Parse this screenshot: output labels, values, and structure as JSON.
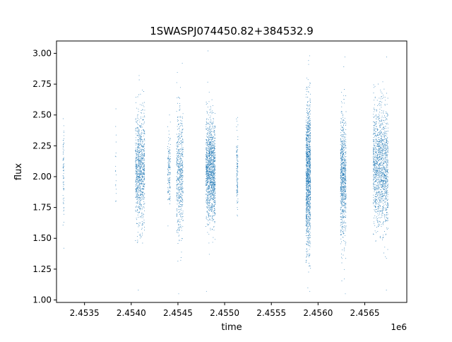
{
  "chart_data": {
    "type": "scatter",
    "title": "1SWASPJ074450.82+384532.9",
    "xlabel": "time",
    "ylabel": "flux",
    "x_offset_label": "1e6",
    "xlim": [
      2453200,
      2456950
    ],
    "ylim": [
      0.98,
      3.1
    ],
    "x_ticks": [
      2453500,
      2454000,
      2454500,
      2455000,
      2455500,
      2456000,
      2456500
    ],
    "x_tick_labels": [
      "2.4535",
      "2.4540",
      "2.4545",
      "2.4550",
      "2.4555",
      "2.4560",
      "2.4565"
    ],
    "y_ticks": [
      1.0,
      1.25,
      1.5,
      1.75,
      2.0,
      2.25,
      2.5,
      2.75,
      3.0
    ],
    "y_tick_labels": [
      "1.00",
      "1.25",
      "1.50",
      "1.75",
      "2.00",
      "2.25",
      "2.50",
      "2.75",
      "3.00"
    ],
    "grid": false,
    "point_color": "#1f77b4",
    "series": [
      {
        "clusters": [
          {
            "x_center": 2453275,
            "x_spread": 6,
            "n": 70,
            "y_mean": 2.02,
            "y_sd": 0.17,
            "y_min": 1.42,
            "y_max": 2.47
          },
          {
            "x_center": 2453835,
            "x_spread": 5,
            "n": 18,
            "y_mean": 2.05,
            "y_sd": 0.2,
            "y_min": 1.8,
            "y_max": 2.55
          },
          {
            "x_center": 2454095,
            "x_spread": 50,
            "n": 900,
            "y_mean": 2.05,
            "y_sd": 0.22,
            "y_min": 1.08,
            "y_max": 2.82
          },
          {
            "x_center": 2454405,
            "x_spread": 15,
            "n": 140,
            "y_mean": 2.05,
            "y_sd": 0.15,
            "y_min": 1.6,
            "y_max": 2.5
          },
          {
            "x_center": 2454520,
            "x_spread": 35,
            "n": 550,
            "y_mean": 2.02,
            "y_sd": 0.25,
            "y_min": 1.05,
            "y_max": 2.92
          },
          {
            "x_center": 2454850,
            "x_spread": 50,
            "n": 1300,
            "y_mean": 2.05,
            "y_sd": 0.2,
            "y_min": 1.07,
            "y_max": 3.02
          },
          {
            "x_center": 2455135,
            "x_spread": 8,
            "n": 120,
            "y_mean": 2.02,
            "y_sd": 0.18,
            "y_min": 1.68,
            "y_max": 2.48
          },
          {
            "x_center": 2455895,
            "x_spread": 25,
            "n": 1200,
            "y_mean": 2.0,
            "y_sd": 0.3,
            "y_min": 1.07,
            "y_max": 2.98
          },
          {
            "x_center": 2456270,
            "x_spread": 30,
            "n": 800,
            "y_mean": 2.0,
            "y_sd": 0.25,
            "y_min": 1.05,
            "y_max": 2.97
          },
          {
            "x_center": 2456670,
            "x_spread": 80,
            "n": 1400,
            "y_mean": 2.08,
            "y_sd": 0.24,
            "y_min": 1.08,
            "y_max": 2.97
          }
        ]
      }
    ]
  }
}
